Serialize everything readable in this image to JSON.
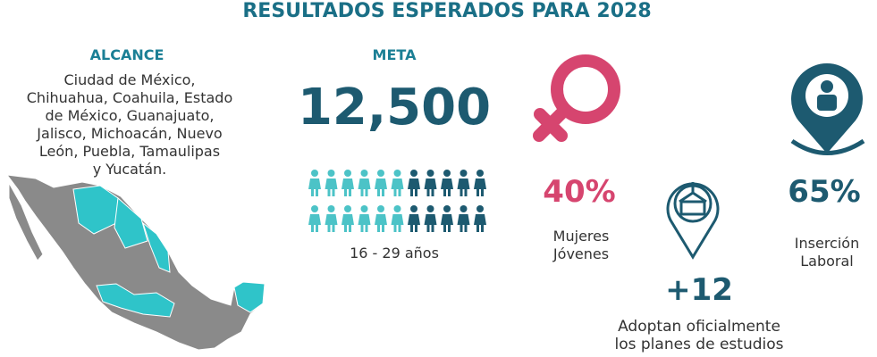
{
  "header": {
    "title": "RESULTADOS ESPERADOS PARA 2028"
  },
  "alcance": {
    "heading": "ALCANCE",
    "lines": [
      "Ciudad de México,",
      "Chihuahua, Coahuila, Estado",
      "de México, Guanajuato,",
      "Jalisco, Michoacán, Nuevo",
      "León, Puebla, Tamaulipas",
      "y Yucatán."
    ]
  },
  "meta": {
    "heading": "META",
    "value": "12,500",
    "age_range": "16 - 29 años"
  },
  "stats": [
    {
      "value": "40%",
      "lines": [
        "Mujeres",
        "Jóvenes"
      ]
    },
    {
      "value": "+12",
      "lines": [
        "Adoptan oficialmente",
        "los planes de estudios"
      ]
    },
    {
      "value": "65%",
      "lines": [
        "Inserción",
        "Laboral"
      ]
    }
  ]
}
